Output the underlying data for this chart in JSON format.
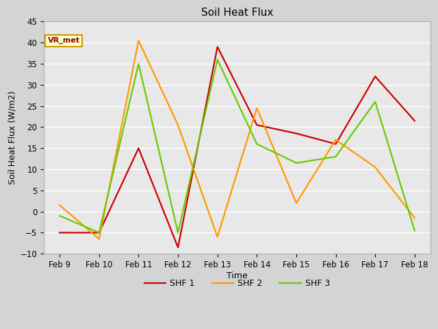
{
  "title": "Soil Heat Flux",
  "xlabel": "Time",
  "ylabel": "Soil Heat Flux (W/m2)",
  "ylim": [
    -10,
    45
  ],
  "x_labels": [
    "Feb 9",
    "Feb 10",
    "Feb 11",
    "Feb 12",
    "Feb 13",
    "Feb 14",
    "Feb 15",
    "Feb 16",
    "Feb 17",
    "Feb 18"
  ],
  "x_positions": [
    0,
    1,
    2,
    3,
    4,
    5,
    6,
    7,
    8,
    9
  ],
  "shf1": [
    -5.0,
    -5.0,
    15.0,
    -8.5,
    39.0,
    20.5,
    18.5,
    16.0,
    32.0,
    21.5
  ],
  "shf2": [
    1.5,
    -6.5,
    40.5,
    20.5,
    -6.0,
    24.5,
    2.0,
    17.0,
    10.5,
    -1.5
  ],
  "shf3": [
    -1.0,
    -5.0,
    35.0,
    -5.0,
    36.0,
    16.0,
    11.5,
    13.0,
    26.0,
    -4.5
  ],
  "color_shf1": "#cc0000",
  "color_shf2": "#ff9900",
  "color_shf3": "#66cc00",
  "legend_label1": "SHF 1",
  "legend_label2": "SHF 2",
  "legend_label3": "SHF 3",
  "fig_bg_color": "#d4d4d4",
  "plot_bg_color": "#e8e8e8",
  "grid_color": "#ffffff",
  "annotation_text": "VR_met",
  "yticks": [
    -10,
    -5,
    0,
    5,
    10,
    15,
    20,
    25,
    30,
    35,
    40,
    45
  ],
  "linewidth": 1.6
}
